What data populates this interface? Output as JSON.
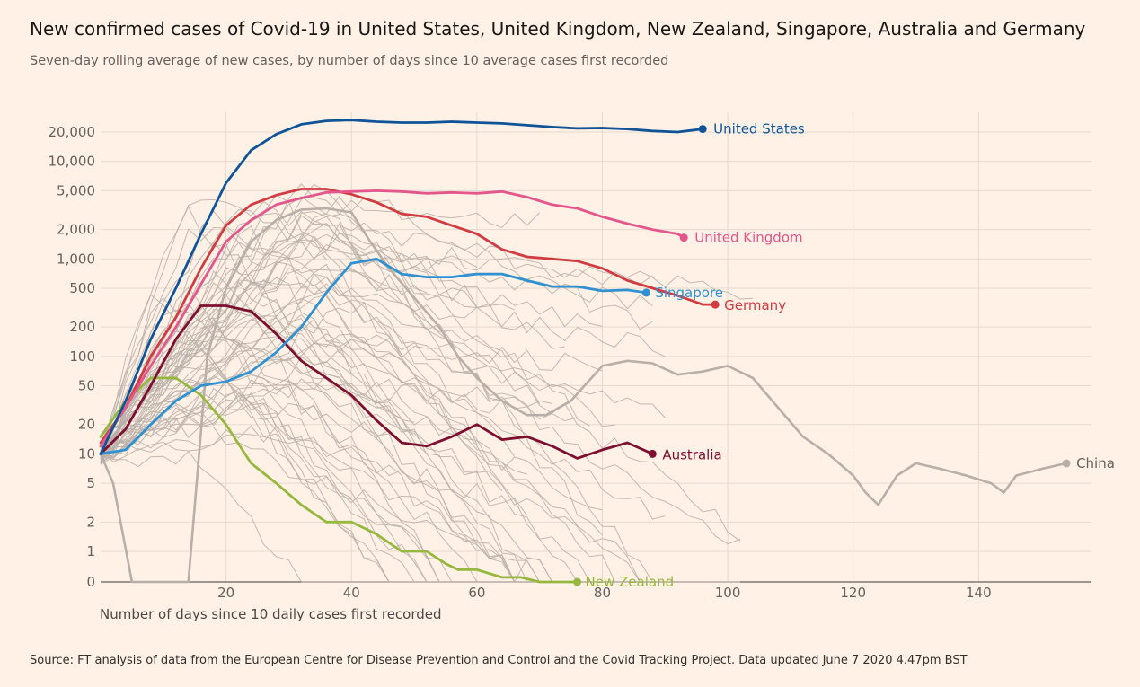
{
  "header": {
    "title": "New confirmed cases of Covid-19 in United States, United Kingdom, New Zealand, Singapore, Australia and Germany",
    "subtitle": "Seven-day rolling average of new cases, by number of days since 10 average cases first recorded"
  },
  "footer": {
    "source": "Source: FT analysis of data from the European Centre for Disease Prevention and Control and the Covid Tracking Project. Data updated June 7 2020 4.47pm BST"
  },
  "chart_data": {
    "type": "line",
    "title": "New confirmed cases of Covid-19 in United States, United Kingdom, New Zealand, Singapore, Australia and Germany",
    "subtitle": "Seven-day rolling average of new cases, by number of days since 10 average cases first recorded",
    "xlabel": "Number of days since 10 daily cases first recorded",
    "ylabel": "",
    "xlim": [
      0,
      158
    ],
    "y_scale": "log",
    "y_tick_values": [
      0,
      1,
      2,
      5,
      10,
      20,
      50,
      100,
      200,
      500,
      1000,
      2000,
      5000,
      10000,
      20000
    ],
    "y_tick_labels": [
      "0",
      "1",
      "2",
      "5",
      "10",
      "20",
      "50",
      "100",
      "200",
      "500",
      "1,000",
      "2,000",
      "5,000",
      "10,000",
      "20,000"
    ],
    "x_ticks": [
      20,
      40,
      60,
      80,
      100,
      120,
      140
    ],
    "grid": true,
    "colors": {
      "background": "#fff1e5",
      "grid": "#e6d9ce",
      "axis": "#66605c",
      "other_countries": "#b8afa8"
    },
    "series": [
      {
        "name": "United States",
        "color": "#0f5499",
        "x": [
          0,
          4,
          8,
          12,
          16,
          20,
          24,
          28,
          32,
          36,
          40,
          44,
          48,
          52,
          56,
          60,
          64,
          68,
          72,
          76,
          80,
          84,
          88,
          92,
          96
        ],
        "y": [
          10,
          35,
          150,
          500,
          1800,
          6000,
          13000,
          19000,
          24000,
          26000,
          26500,
          25500,
          25000,
          25000,
          25500,
          25000,
          24500,
          23500,
          22500,
          21800,
          22000,
          21500,
          20500,
          20000,
          21500
        ]
      },
      {
        "name": "United Kingdom",
        "color": "#e3578d",
        "x": [
          0,
          4,
          8,
          12,
          16,
          20,
          24,
          28,
          32,
          36,
          40,
          44,
          48,
          52,
          56,
          60,
          64,
          68,
          72,
          76,
          80,
          84,
          88,
          92,
          93
        ],
        "y": [
          12,
          30,
          80,
          200,
          550,
          1500,
          2500,
          3600,
          4200,
          4800,
          4900,
          5000,
          4900,
          4700,
          4800,
          4700,
          4900,
          4300,
          3600,
          3300,
          2700,
          2300,
          2000,
          1800,
          1650
        ]
      },
      {
        "name": "Germany",
        "color": "#d13b42",
        "x": [
          0,
          4,
          8,
          12,
          16,
          20,
          24,
          28,
          32,
          36,
          40,
          44,
          48,
          52,
          56,
          60,
          64,
          68,
          72,
          76,
          80,
          84,
          88,
          92,
          96,
          98
        ],
        "y": [
          13,
          30,
          100,
          250,
          800,
          2200,
          3600,
          4500,
          5200,
          5200,
          4600,
          3800,
          2900,
          2700,
          2200,
          1800,
          1250,
          1050,
          1000,
          950,
          800,
          600,
          500,
          420,
          340,
          340
        ]
      },
      {
        "name": "Singapore",
        "color": "#2e91d2",
        "x": [
          0,
          4,
          8,
          12,
          16,
          20,
          24,
          28,
          32,
          36,
          40,
          44,
          48,
          52,
          56,
          60,
          64,
          68,
          72,
          76,
          80,
          84,
          87
        ],
        "y": [
          10,
          11,
          20,
          35,
          50,
          55,
          70,
          110,
          200,
          450,
          900,
          1000,
          700,
          650,
          650,
          700,
          700,
          600,
          520,
          520,
          470,
          480,
          450
        ]
      },
      {
        "name": "Australia",
        "color": "#7d0f30",
        "x": [
          0,
          4,
          8,
          12,
          16,
          20,
          24,
          28,
          32,
          36,
          40,
          44,
          48,
          52,
          56,
          60,
          64,
          68,
          72,
          76,
          80,
          84,
          88
        ],
        "y": [
          10,
          18,
          50,
          150,
          330,
          330,
          290,
          170,
          90,
          60,
          40,
          22,
          13,
          12,
          15,
          20,
          14,
          15,
          12,
          9,
          11,
          13,
          10
        ]
      },
      {
        "name": "New Zealand",
        "color": "#96b83e",
        "x": [
          0,
          4,
          8,
          12,
          16,
          20,
          24,
          28,
          32,
          36,
          40,
          44,
          48,
          52,
          55,
          57,
          60,
          64,
          67,
          70,
          76
        ],
        "y": [
          15,
          35,
          60,
          60,
          40,
          20,
          8,
          5,
          3,
          2,
          2,
          1.5,
          1,
          1,
          0.6,
          0.4,
          0.4,
          0.15,
          0.15,
          0,
          0
        ]
      },
      {
        "name": "China",
        "color": "#b8afa8",
        "x": [
          0,
          2,
          5,
          8,
          11,
          14,
          17,
          20,
          24,
          28,
          32,
          36,
          40,
          43,
          46,
          50,
          54,
          57,
          60,
          64,
          68,
          71,
          75,
          80,
          84,
          88,
          92,
          96,
          100,
          104,
          108,
          112,
          116,
          120,
          122,
          124,
          127,
          130,
          134,
          138,
          142,
          144,
          146,
          150,
          154
        ],
        "y": [
          10,
          5,
          0,
          0,
          0,
          0,
          100,
          500,
          1500,
          2500,
          3200,
          3300,
          3000,
          1500,
          800,
          400,
          200,
          100,
          60,
          35,
          25,
          25,
          35,
          80,
          90,
          85,
          65,
          70,
          80,
          60,
          30,
          15,
          10,
          6,
          4,
          3,
          6,
          8,
          7,
          6,
          5,
          4,
          6,
          7,
          8
        ]
      }
    ],
    "other_countries_lines": 60
  }
}
